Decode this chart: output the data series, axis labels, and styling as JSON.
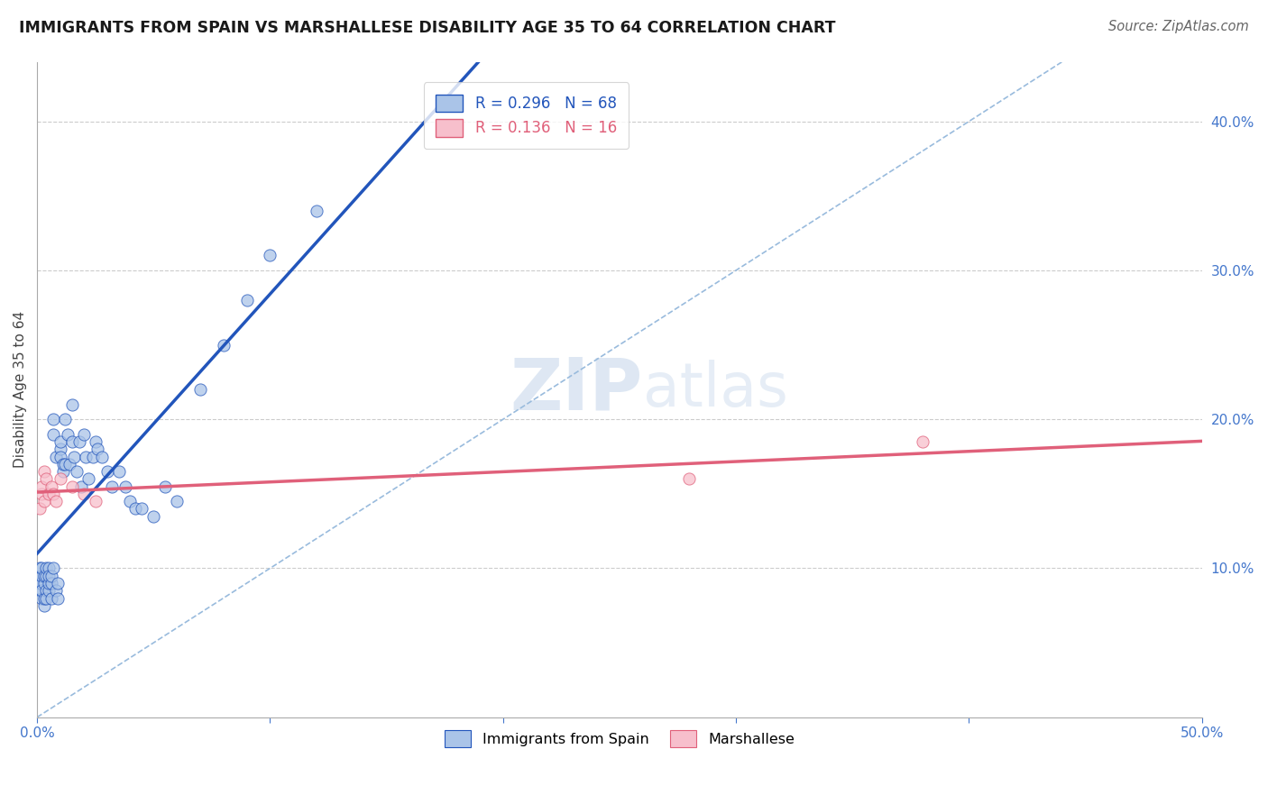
{
  "title": "IMMIGRANTS FROM SPAIN VS MARSHALLESE DISABILITY AGE 35 TO 64 CORRELATION CHART",
  "source": "Source: ZipAtlas.com",
  "ylabel": "Disability Age 35 to 64",
  "xlim": [
    0.0,
    0.5
  ],
  "ylim": [
    0.0,
    0.44
  ],
  "r_spain": 0.296,
  "n_spain": 68,
  "r_marsh": 0.136,
  "n_marsh": 16,
  "spain_color": "#aac4e8",
  "marsh_color": "#f7bfcc",
  "spain_line_color": "#2255bb",
  "marsh_line_color": "#e0607a",
  "diag_line_color": "#99bbdd",
  "legend_label_spain": "Immigrants from Spain",
  "legend_label_marsh": "Marshallese",
  "watermark_zip": "ZIP",
  "watermark_atlas": "atlas",
  "spain_x": [
    0.001,
    0.001,
    0.001,
    0.001,
    0.002,
    0.002,
    0.002,
    0.002,
    0.002,
    0.003,
    0.003,
    0.003,
    0.003,
    0.004,
    0.004,
    0.004,
    0.004,
    0.005,
    0.005,
    0.005,
    0.005,
    0.006,
    0.006,
    0.006,
    0.007,
    0.007,
    0.007,
    0.008,
    0.008,
    0.009,
    0.009,
    0.01,
    0.01,
    0.01,
    0.011,
    0.011,
    0.012,
    0.012,
    0.013,
    0.014,
    0.015,
    0.015,
    0.016,
    0.017,
    0.018,
    0.019,
    0.02,
    0.021,
    0.022,
    0.024,
    0.025,
    0.026,
    0.028,
    0.03,
    0.032,
    0.035,
    0.038,
    0.04,
    0.042,
    0.045,
    0.05,
    0.055,
    0.06,
    0.07,
    0.08,
    0.09,
    0.1,
    0.12
  ],
  "spain_y": [
    0.085,
    0.095,
    0.1,
    0.09,
    0.08,
    0.09,
    0.095,
    0.1,
    0.085,
    0.075,
    0.08,
    0.09,
    0.095,
    0.085,
    0.08,
    0.095,
    0.1,
    0.085,
    0.09,
    0.1,
    0.095,
    0.08,
    0.09,
    0.095,
    0.1,
    0.19,
    0.2,
    0.085,
    0.175,
    0.08,
    0.09,
    0.18,
    0.185,
    0.175,
    0.165,
    0.17,
    0.17,
    0.2,
    0.19,
    0.17,
    0.185,
    0.21,
    0.175,
    0.165,
    0.185,
    0.155,
    0.19,
    0.175,
    0.16,
    0.175,
    0.185,
    0.18,
    0.175,
    0.165,
    0.155,
    0.165,
    0.155,
    0.145,
    0.14,
    0.14,
    0.135,
    0.155,
    0.145,
    0.22,
    0.25,
    0.28,
    0.31,
    0.34
  ],
  "marsh_x": [
    0.001,
    0.002,
    0.002,
    0.003,
    0.003,
    0.004,
    0.005,
    0.006,
    0.007,
    0.008,
    0.01,
    0.015,
    0.02,
    0.025,
    0.28,
    0.38
  ],
  "marsh_y": [
    0.14,
    0.15,
    0.155,
    0.145,
    0.165,
    0.16,
    0.15,
    0.155,
    0.15,
    0.145,
    0.16,
    0.155,
    0.15,
    0.145,
    0.16,
    0.185
  ]
}
